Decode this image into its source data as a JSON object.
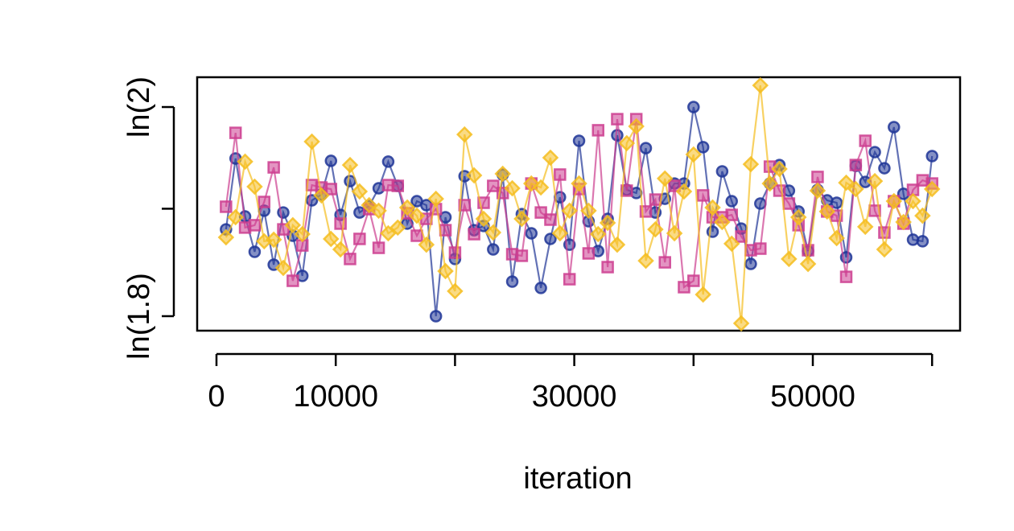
{
  "chart_data": {
    "type": "line",
    "x_label": "iteration",
    "x": [
      800,
      1600,
      2400,
      3200,
      4000,
      4800,
      5600,
      6400,
      7200,
      8000,
      8800,
      9600,
      10400,
      11200,
      12000,
      12800,
      13600,
      14400,
      15200,
      16000,
      16800,
      17600,
      18400,
      19200,
      20000,
      20800,
      21600,
      22400,
      23200,
      24000,
      24800,
      25600,
      26400,
      27200,
      28000,
      28800,
      29600,
      30400,
      31200,
      32000,
      32800,
      33600,
      34400,
      35200,
      36000,
      36800,
      37600,
      38400,
      39200,
      40000,
      40800,
      41600,
      42400,
      43200,
      44000,
      44800,
      45600,
      46400,
      47200,
      48000,
      48800,
      49600,
      50400,
      51200,
      52000,
      52800,
      53600,
      54400,
      55200,
      56000,
      56800,
      57600,
      58400,
      59200,
      60000
    ],
    "series": [
      {
        "color": "#1f3596",
        "marker": "circle",
        "values": [
          0.6315,
          0.6672,
          0.638,
          0.6202,
          0.6409,
          0.6137,
          0.64,
          0.6283,
          0.6081,
          0.6461,
          0.649,
          0.666,
          0.6388,
          0.6558,
          0.64,
          0.6433,
          0.6522,
          0.6656,
          0.6534,
          0.6344,
          0.6457,
          0.6437,
          0.5878,
          0.6376,
          0.6166,
          0.6583,
          0.6311,
          0.6332,
          0.6214,
          0.6591,
          0.6052,
          0.6392,
          0.6295,
          0.602,
          0.6267,
          0.6477,
          0.6238,
          0.6761,
          0.6356,
          0.6206,
          0.6368,
          0.6789,
          0.6514,
          0.6498,
          0.6724,
          0.64,
          0.6469,
          0.6546,
          0.6546,
          0.6931,
          0.6729,
          0.6303,
          0.6607,
          0.6457,
          0.6319,
          0.6141,
          0.6445,
          0.6546,
          0.6639,
          0.651,
          0.6405,
          0.6206,
          0.6514,
          0.6461,
          0.6449,
          0.6174,
          0.6635,
          0.6554,
          0.6704,
          0.6623,
          0.683,
          0.6494,
          0.6263,
          0.6255,
          0.6684
        ]
      },
      {
        "color": "#cc3d8f",
        "marker": "square",
        "values": [
          0.6429,
          0.6801,
          0.6324,
          0.6336,
          0.6453,
          0.6627,
          0.6315,
          0.6056,
          0.6234,
          0.6538,
          0.6526,
          0.6518,
          0.6344,
          0.6166,
          0.6267,
          0.6417,
          0.6222,
          0.6538,
          0.6534,
          0.6396,
          0.6283,
          0.6368,
          0.6417,
          0.6311,
          0.6198,
          0.6437,
          0.6291,
          0.6449,
          0.6534,
          0.6498,
          0.619,
          0.6182,
          0.6546,
          0.64,
          0.6364,
          0.6591,
          0.6064,
          0.6518,
          0.6194,
          0.6814,
          0.6125,
          0.687,
          0.651,
          0.687,
          0.6405,
          0.6465,
          0.6149,
          0.6534,
          0.6024,
          0.6056,
          0.6486,
          0.6376,
          0.6376,
          0.6388,
          0.6279,
          0.621,
          0.6218,
          0.6631,
          0.651,
          0.6445,
          0.6336,
          0.621,
          0.6579,
          0.6405,
          0.6384,
          0.6076,
          0.6639,
          0.6761,
          0.6409,
          0.6299,
          0.6457,
          0.6344,
          0.6514,
          0.6562,
          0.6546
        ]
      },
      {
        "color": "#f5bd1f",
        "marker": "diamond",
        "values": [
          0.6275,
          0.6376,
          0.6656,
          0.653,
          0.6255,
          0.6263,
          0.6121,
          0.6336,
          0.6291,
          0.6757,
          0.6486,
          0.6267,
          0.6214,
          0.6639,
          0.6506,
          0.6437,
          0.6409,
          0.6295,
          0.6324,
          0.6425,
          0.6384,
          0.6238,
          0.6469,
          0.6105,
          0.6004,
          0.6793,
          0.6587,
          0.6368,
          0.6299,
          0.6595,
          0.6522,
          0.6368,
          0.6546,
          0.6526,
          0.6676,
          0.6295,
          0.6409,
          0.6546,
          0.6409,
          0.6291,
          0.6348,
          0.6238,
          0.6749,
          0.6834,
          0.6157,
          0.6315,
          0.6571,
          0.6295,
          0.6506,
          0.6692,
          0.5987,
          0.6425,
          0.6352,
          0.6243,
          0.5842,
          0.6643,
          0.704,
          0.6546,
          0.6619,
          0.6166,
          0.6376,
          0.6141,
          0.651,
          0.6405,
          0.6271,
          0.655,
          0.6518,
          0.6328,
          0.6558,
          0.6214,
          0.6457,
          0.6352,
          0.6457,
          0.6384,
          0.6518
        ]
      }
    ],
    "xlim": [
      -1619,
      62347
    ],
    "xticks": [
      0,
      10000,
      30000,
      50000
    ],
    "xticks_unlabeled": [
      20000,
      40000,
      60000
    ],
    "ylim": [
      0.5805,
      0.7081
    ],
    "yticks": [
      {
        "value": 0.5878,
        "label": "ln(1.8)"
      },
      {
        "value": 0.6931,
        "label": "ln(2)"
      }
    ],
    "yticks_unlabeled": [
      0.6419
    ],
    "grid": false
  }
}
